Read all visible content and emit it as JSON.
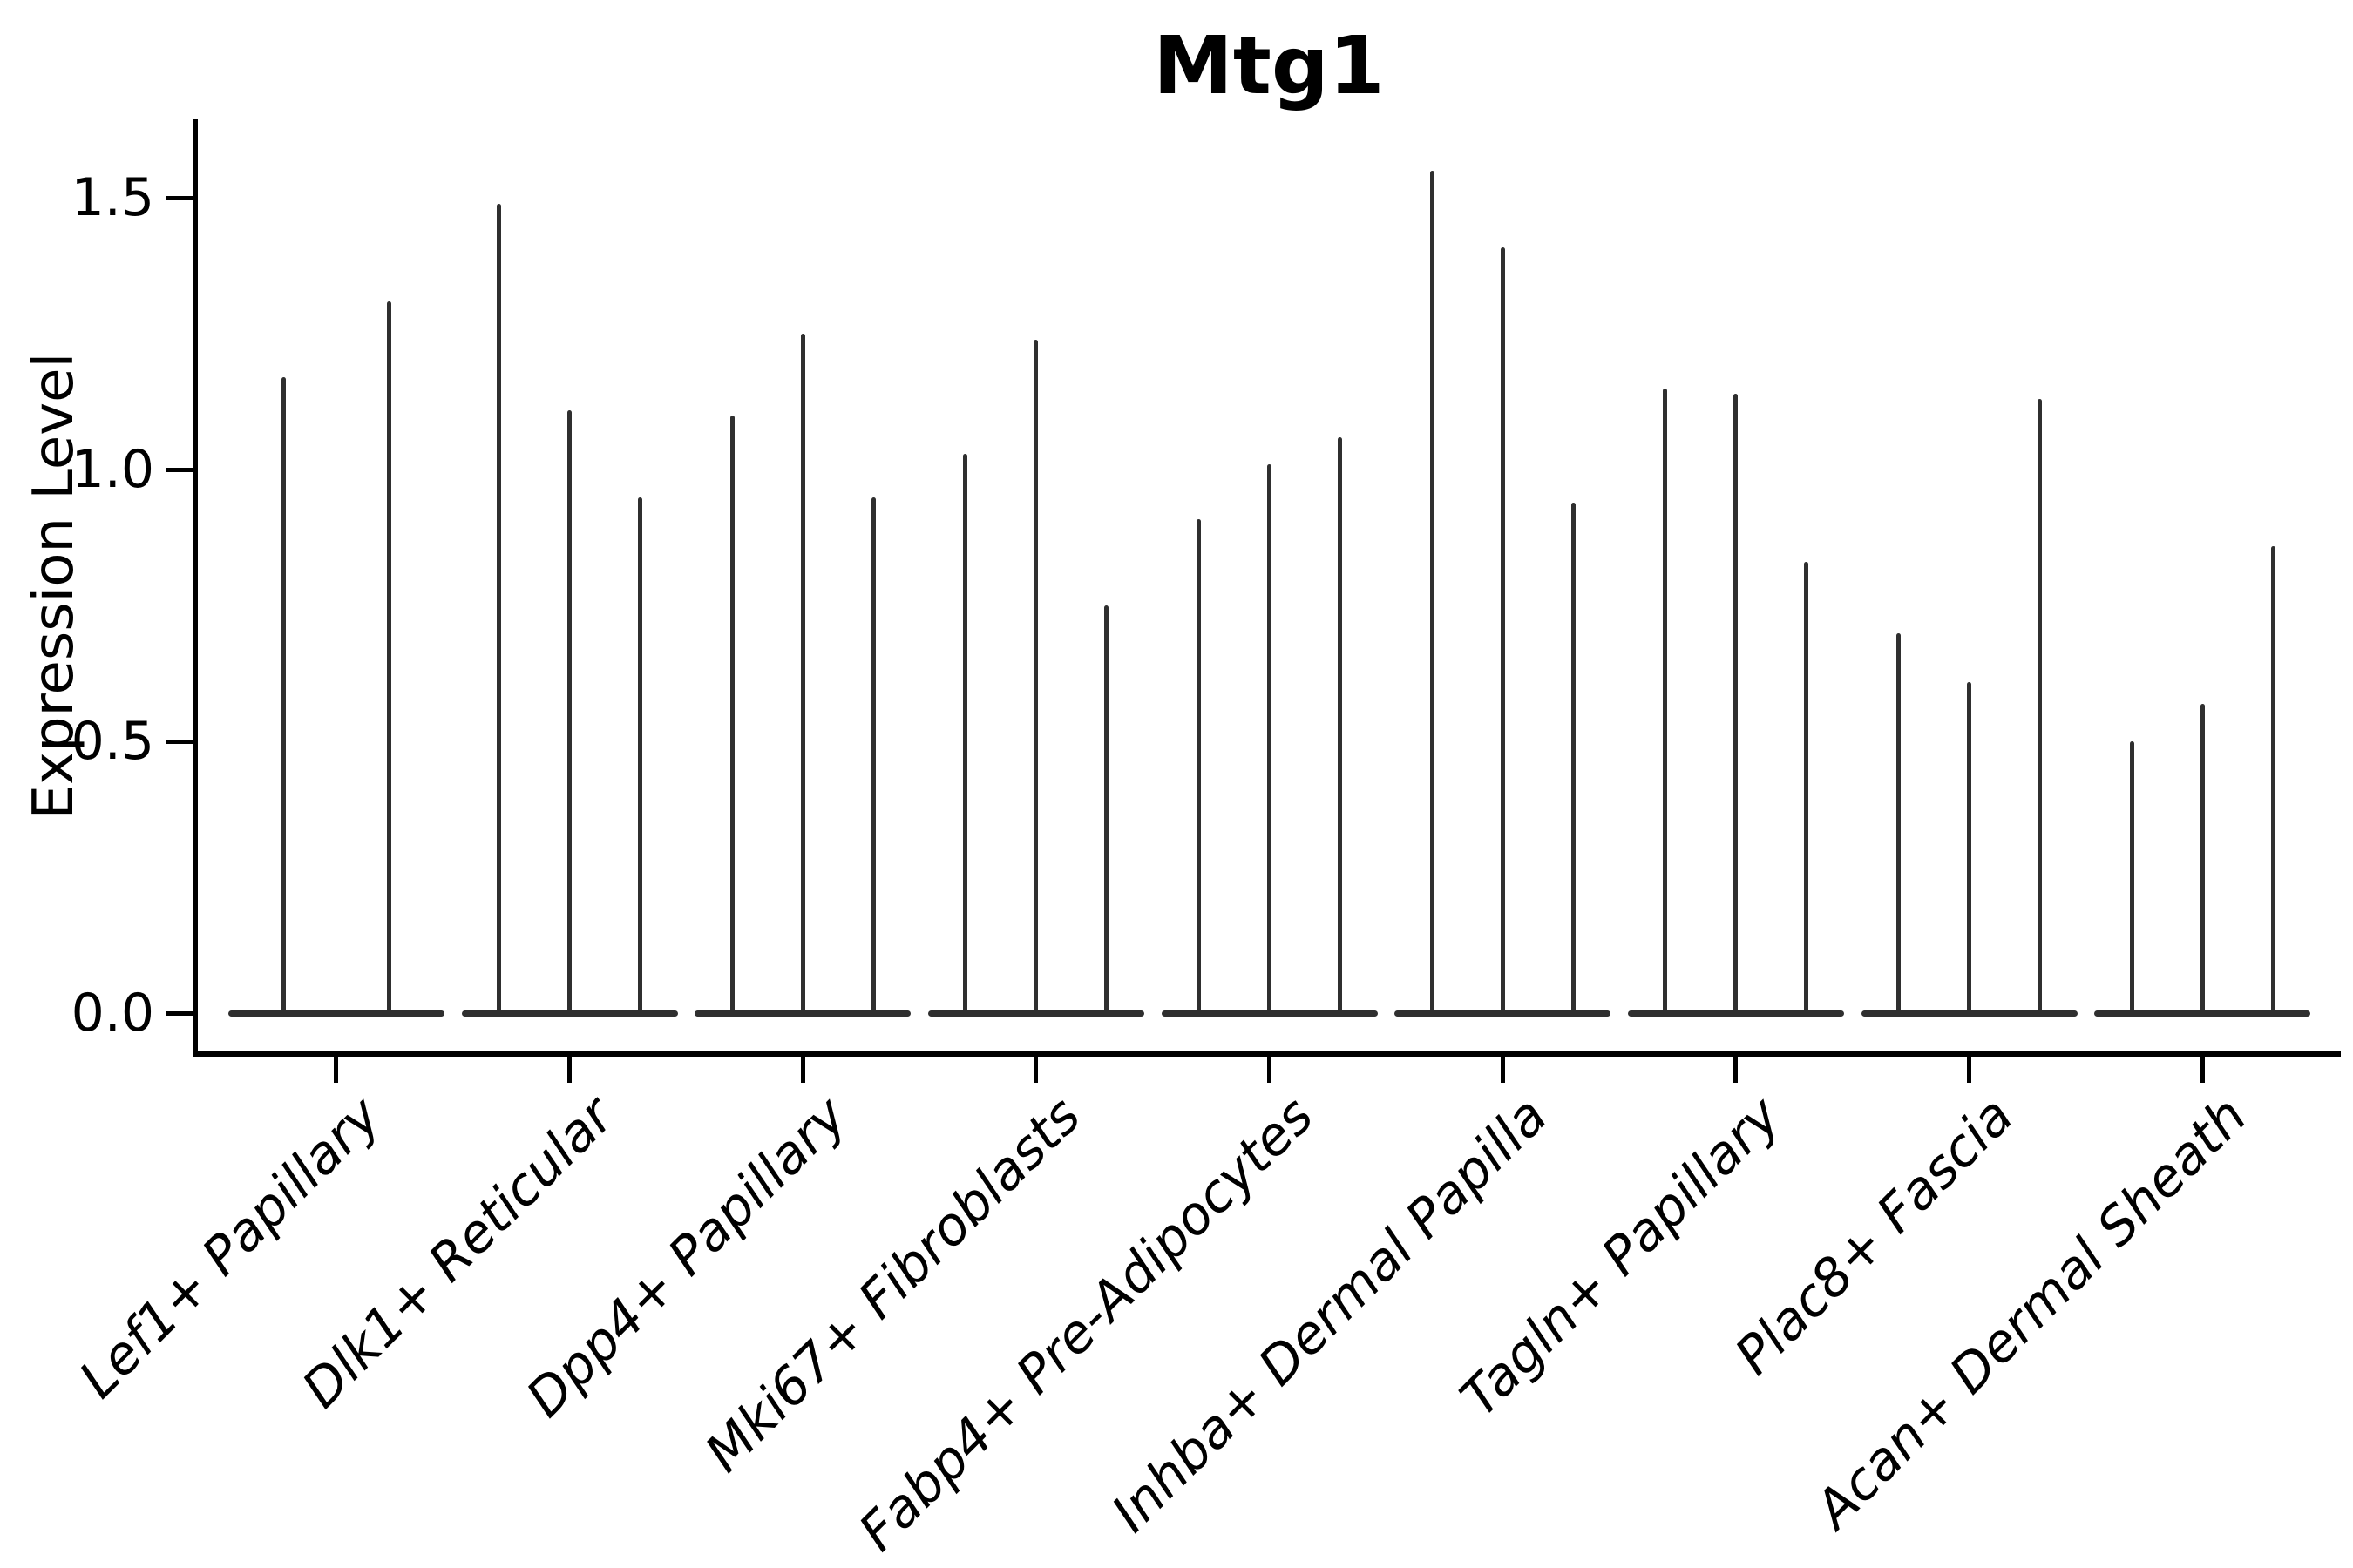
{
  "figure": {
    "background": "#ffffff"
  },
  "chart_data": {
    "type": "violin",
    "title": "Mtg1",
    "ylabel": "Expression Level",
    "xlabel": "",
    "ytick_labels": [
      "0.0",
      "0.5",
      "1.0",
      "1.5"
    ],
    "ytick_values": [
      0.0,
      0.5,
      1.0,
      1.5
    ],
    "ylim": [
      -0.07,
      1.64
    ],
    "grid": false,
    "legend": "none",
    "style": {
      "violin_color": "#2f2f2f",
      "axis_color": "#000000",
      "text_color": "#000000",
      "xticklabel_rotation_deg": 45,
      "xticklabel_style": "italic"
    },
    "groups": [
      {
        "label": "Lef1+ Papillary",
        "violin_peaks": [
          1.17,
          1.31
        ]
      },
      {
        "label": "Dlk1+ Reticular",
        "violin_peaks": [
          1.49,
          1.11,
          0.95
        ]
      },
      {
        "label": "Dpp4+ Papillary",
        "violin_peaks": [
          1.1,
          1.25,
          0.95
        ]
      },
      {
        "label": "Mki67+ Fibroblasts",
        "violin_peaks": [
          1.03,
          1.24,
          0.75
        ]
      },
      {
        "label": "Fabp4+ Pre-Adipocytes",
        "violin_peaks": [
          0.91,
          1.01,
          1.06
        ]
      },
      {
        "label": "Inhba+ Dermal Papilla",
        "violin_peaks": [
          1.55,
          1.41,
          0.94
        ]
      },
      {
        "label": "Tagln+ Papillary",
        "violin_peaks": [
          1.15,
          1.14,
          0.83
        ]
      },
      {
        "label": "Plac8+ Fascia",
        "violin_peaks": [
          0.7,
          0.61,
          1.13
        ]
      },
      {
        "label": "Acan+ Dermal Sheath",
        "violin_peaks": [
          0.5,
          0.57,
          0.86
        ]
      }
    ]
  }
}
